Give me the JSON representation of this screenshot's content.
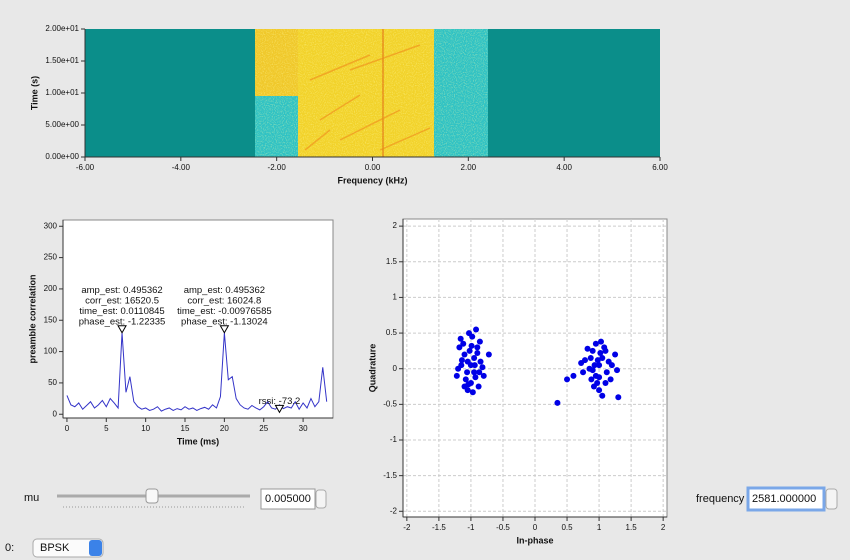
{
  "chart_data": [
    {
      "type": "heatmap",
      "xlabel": "Frequency (kHz)",
      "ylabel": "Time (s)",
      "xlim": [
        -6,
        6
      ],
      "ylim": [
        0,
        20
      ],
      "xticks": [
        {
          "value": -6,
          "label": "-6.00"
        },
        {
          "value": -4,
          "label": "-4.00"
        },
        {
          "value": -2,
          "label": "-2.00"
        },
        {
          "value": 0,
          "label": "0.00"
        },
        {
          "value": 2,
          "label": "2.00"
        },
        {
          "value": 4,
          "label": "4.00"
        },
        {
          "value": 6,
          "label": "6.00"
        }
      ],
      "yticks": [
        {
          "value": 0,
          "label": "0.00e+00"
        },
        {
          "value": 5,
          "label": "5.00e+00"
        },
        {
          "value": 10,
          "label": "1.00e+01"
        },
        {
          "value": 15,
          "label": "1.50e+01"
        },
        {
          "value": 20,
          "label": "2.00e+01"
        }
      ],
      "grid": false
    },
    {
      "type": "line",
      "xlabel": "Time (ms)",
      "ylabel": "preamble correlation",
      "xlim": [
        -0.5,
        33.8
      ],
      "ylim": [
        -6,
        310
      ],
      "xticks": [
        0,
        5,
        10,
        15,
        20,
        25,
        30
      ],
      "yticks": [
        0,
        50,
        100,
        150,
        200,
        250,
        300
      ],
      "grid": false,
      "series": [
        {
          "color": "#3434c8",
          "x": [
            0,
            0.5,
            1,
            1.5,
            2,
            2.5,
            3,
            3.5,
            4,
            4.5,
            5,
            5.5,
            6,
            6.5,
            7,
            7.5,
            8,
            8.5,
            9,
            9.5,
            10,
            10.5,
            11,
            11.5,
            12,
            12.5,
            13,
            13.5,
            14,
            14.5,
            15,
            15.5,
            16,
            16.5,
            17,
            17.5,
            18,
            18.5,
            19,
            19.5,
            20,
            20.5,
            21,
            21.5,
            22,
            22.5,
            23,
            23.5,
            24,
            24.5,
            25,
            25.5,
            26,
            26.5,
            27,
            27.5,
            28,
            28.5,
            29,
            29.5,
            30,
            30.5,
            31,
            31.5,
            32,
            32.5,
            33
          ],
          "values": [
            30,
            15,
            12,
            18,
            8,
            14,
            20,
            10,
            15,
            22,
            12,
            25,
            18,
            10,
            130,
            35,
            60,
            20,
            12,
            8,
            10,
            6,
            8,
            12,
            5,
            8,
            10,
            6,
            9,
            7,
            12,
            8,
            10,
            6,
            9,
            11,
            8,
            15,
            10,
            28,
            130,
            55,
            60,
            25,
            15,
            10,
            8,
            14,
            10,
            7,
            12,
            20,
            10,
            8,
            15,
            9,
            12,
            10,
            20,
            8,
            18,
            10,
            25,
            12,
            20,
            75,
            20
          ]
        }
      ],
      "annotations": [
        {
          "x": 7,
          "y": 130,
          "lines": [
            "amp_est: 0.495362",
            "corr_est: 16520.5",
            "time_est: 0.0110845",
            "phase_est: -1.22335"
          ]
        },
        {
          "x": 20,
          "y": 130,
          "lines": [
            "amp_est: 0.495362",
            "corr_est: 16024.8",
            "time_est: -0.00976585",
            "phase_est: -1.13024"
          ]
        },
        {
          "x": 27,
          "y": 3,
          "lines": [
            "rssi: -73.2"
          ]
        }
      ]
    },
    {
      "type": "scatter",
      "xlabel": "In-phase",
      "ylabel": "Quadrature",
      "xlim": [
        -2.06,
        2.06
      ],
      "ylim": [
        -2.08,
        2.1
      ],
      "xticks": [
        -2,
        -1.5,
        -1,
        -0.5,
        0,
        0.5,
        1,
        1.5,
        2
      ],
      "yticks": [
        -2,
        -1.5,
        -1,
        -0.5,
        0,
        0.5,
        1,
        1.5,
        2
      ],
      "grid": true,
      "series": [
        {
          "color": "#0000e6",
          "x": [
            -1.05,
            -0.95,
            -1.1,
            -0.9,
            -1.0,
            -1.15,
            -0.85,
            -1.05,
            -0.98,
            -1.12,
            -0.92,
            -1.2,
            -0.8,
            -1.02,
            -0.88,
            -1.08,
            -0.95,
            -1.18,
            -0.72,
            -1.0,
            -1.06,
            -0.93,
            -1.14,
            -0.86,
            -1.03,
            -0.97,
            -1.1,
            -0.9,
            -1.22,
            -0.82,
            -0.99,
            -1.04,
            -0.94,
            -1.16,
            -0.87,
            1.0,
            0.95,
            1.05,
            0.9,
            1.1,
            0.85,
            1.15,
            1.0,
            0.95,
            1.08,
            0.92,
            1.2,
            0.78,
            1.02,
            0.88,
            1.12,
            0.98,
            1.25,
            0.75,
            1.0,
            1.05,
            0.93,
            1.18,
            0.82,
            1.03,
            0.97,
            1.1,
            0.9,
            1.28,
            0.72,
            0.5,
            0.35,
            0.6,
            1.3,
            0.87
          ],
          "values": [
            0.1,
            -0.05,
            0.2,
            0.3,
            -0.2,
            0.05,
            0.1,
            -0.3,
            0.45,
            0.35,
            0.55,
            0.0,
            -0.1,
            0.25,
            -0.25,
            -0.15,
            0.15,
            0.3,
            0.2,
            0.05,
            -0.05,
            -0.12,
            0.12,
            0.38,
            0.5,
            -0.33,
            -0.25,
            0.22,
            -0.1,
            0.02,
            0.32,
            -0.22,
            0.05,
            0.42,
            -0.05,
            0.05,
            -0.1,
            0.15,
            0.25,
            -0.2,
            0.0,
            0.1,
            -0.3,
            0.35,
            0.3,
            -0.25,
            0.05,
            0.12,
            0.22,
            -0.15,
            -0.05,
            0.12,
            0.2,
            -0.05,
            -0.12,
            -0.38,
            0.05,
            -0.15,
            0.28,
            0.38,
            -0.2,
            0.25,
            -0.02,
            -0.02,
            0.08,
            -0.15,
            -0.48,
            -0.1,
            -0.4,
            0.15
          ]
        }
      ]
    }
  ],
  "controls": {
    "mu_label": "mu",
    "mu_value": "0.005000",
    "frequency_label": "frequency",
    "frequency_value": "2581.000000",
    "selector_label": "0:",
    "selector_value": "BPSK"
  }
}
